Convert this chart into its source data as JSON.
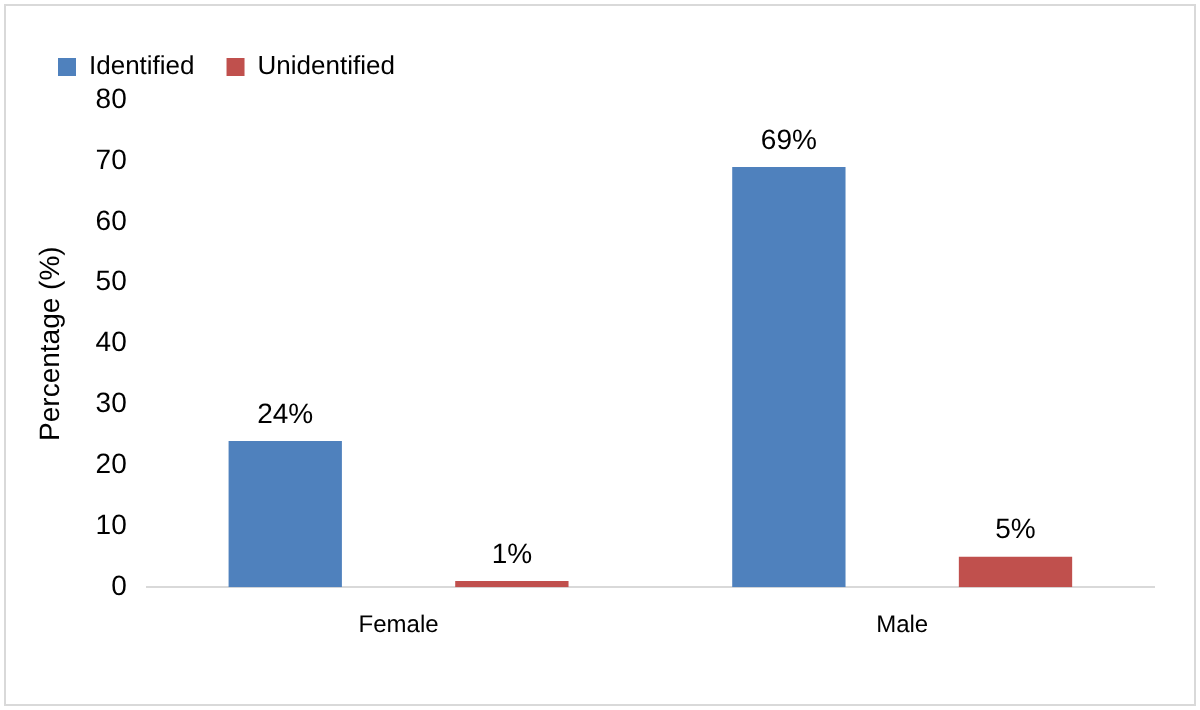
{
  "chart_data": {
    "type": "bar",
    "ylabel": "Percentage (%)",
    "categories": [
      "Female",
      "Male"
    ],
    "series": [
      {
        "name": "Identified",
        "color": "#4f81bd",
        "values": [
          24,
          69
        ],
        "value_labels": [
          "24%",
          "69%"
        ]
      },
      {
        "name": "Unidentified",
        "color": "#c0504d",
        "values": [
          1,
          5
        ],
        "value_labels": [
          "1%",
          "5%"
        ]
      }
    ],
    "ylim": [
      0,
      80
    ],
    "yticks": [
      0,
      10,
      20,
      30,
      40,
      50,
      60,
      70,
      80
    ],
    "grid": false,
    "legend": "top left"
  }
}
